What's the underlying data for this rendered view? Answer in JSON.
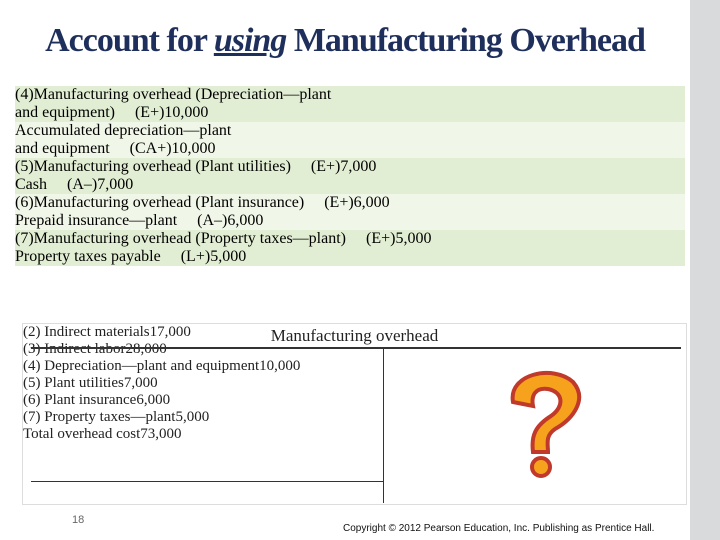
{
  "header": {
    "title_before": "Account for ",
    "title_emphasis": "using",
    "title_after": " Manufacturing Overhead"
  },
  "journal": {
    "rows": [
      [
        "(4)",
        "Manufacturing overhead (Depreciation—plant",
        "",
        ""
      ],
      [
        "",
        "and equipment)     (E+)",
        "10,000",
        ""
      ],
      [
        "",
        "Accumulated depreciation—plant",
        "",
        ""
      ],
      [
        "",
        "and equipment     (CA+)",
        "",
        "10,000"
      ],
      [
        "(5)",
        "Manufacturing overhead (Plant utilities)     (E+)",
        "7,000",
        ""
      ],
      [
        "",
        "Cash     (A–)",
        "",
        "7,000"
      ],
      [
        "(6)",
        "Manufacturing overhead (Plant insurance)     (E+)",
        "6,000",
        ""
      ],
      [
        "",
        "Prepaid insurance—plant     (A–)",
        "",
        "6,000"
      ],
      [
        "(7)",
        "Manufacturing overhead (Property taxes—plant)     (E+)",
        "5,000",
        ""
      ],
      [
        "",
        "Property taxes payable     (L+)",
        "",
        "5,000"
      ]
    ]
  },
  "t_account": {
    "title": "Manufacturing overhead",
    "rows": [
      [
        "(2) Indirect materials",
        "17,000"
      ],
      [
        "(3) Indirect labor",
        "28,000"
      ],
      [
        "(4) Depreciation—plant and equipment",
        "10,000"
      ],
      [
        "(5) Plant utilities",
        "7,000"
      ],
      [
        "(6) Plant insurance",
        "6,000"
      ],
      [
        "(7) Property taxes—plant",
        "5,000"
      ]
    ],
    "total": [
      "Total overhead cost",
      "73,000"
    ]
  },
  "footer": {
    "page": "18",
    "copyright": "Copyright © 2012 Pearson Education, Inc. Publishing as Prentice Hall."
  }
}
